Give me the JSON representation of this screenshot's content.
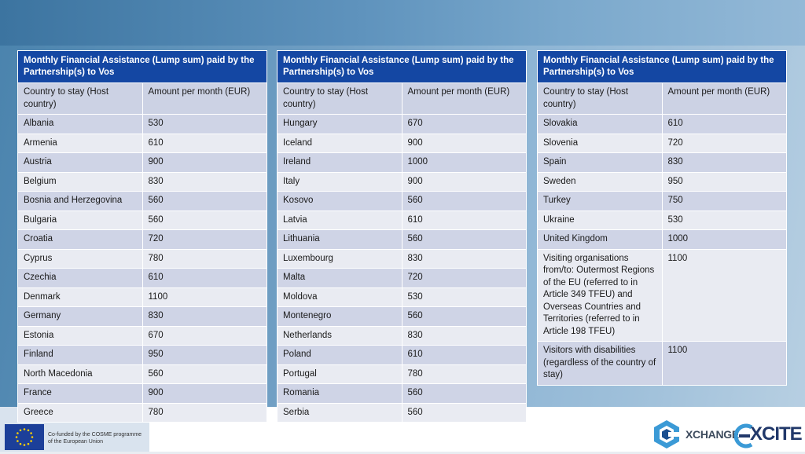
{
  "header": "Monthly Financial Assistance (Lump sum) paid by the Partnership(s) to Vos",
  "col1": "Country to stay (Host country)",
  "col2": "Amount per month (EUR)",
  "tables": [
    {
      "rows": [
        [
          "Albania",
          "530"
        ],
        [
          "Armenia",
          "610"
        ],
        [
          "Austria",
          "900"
        ],
        [
          "Belgium",
          "830"
        ],
        [
          "Bosnia and Herzegovina",
          "560"
        ],
        [
          "Bulgaria",
          "560"
        ],
        [
          "Croatia",
          "720"
        ],
        [
          "Cyprus",
          "780"
        ],
        [
          "Czechia",
          "610"
        ],
        [
          "Denmark",
          "1100"
        ],
        [
          "Germany",
          "830"
        ],
        [
          "Estonia",
          "670"
        ],
        [
          "Finland",
          "950"
        ],
        [
          "North Macedonia",
          "560"
        ],
        [
          "France",
          "900"
        ],
        [
          "Greece",
          "780"
        ]
      ]
    },
    {
      "rows": [
        [
          "Hungary",
          "670"
        ],
        [
          "Iceland",
          "900"
        ],
        [
          "Ireland",
          "1000"
        ],
        [
          "Italy",
          "900"
        ],
        [
          "Kosovo",
          "560"
        ],
        [
          "Latvia",
          "610"
        ],
        [
          "Lithuania",
          "560"
        ],
        [
          "Luxembourg",
          "830"
        ],
        [
          "Malta",
          "720"
        ],
        [
          "Moldova",
          "530"
        ],
        [
          "Montenegro",
          "560"
        ],
        [
          "Netherlands",
          "830"
        ],
        [
          "Poland",
          "610"
        ],
        [
          "Portugal",
          "780"
        ],
        [
          "Romania",
          "560"
        ],
        [
          "Serbia",
          "560"
        ]
      ]
    },
    {
      "rows": [
        [
          "Slovakia",
          "610"
        ],
        [
          "Slovenia",
          "720"
        ],
        [
          "Spain",
          "830"
        ],
        [
          "Sweden",
          "950"
        ],
        [
          "Turkey",
          "750"
        ],
        [
          "Ukraine",
          "530"
        ],
        [
          "United Kingdom",
          "1000"
        ],
        [
          "Visiting organisations from/to: Outermost Regions of the EU (referred to in Article 349 TFEU) and Overseas Countries and Territories (referred to in Article 198 TFEU)",
          "1100"
        ],
        [
          "Visitors with disabilities (regardless of the country of stay)",
          "1100"
        ]
      ]
    }
  ],
  "footer": {
    "cofund_line1": "Co-funded by the COSME programme",
    "cofund_line2": "of the European Union",
    "logo1_text": "XCHANGE",
    "logo2_text": "XCITE",
    "flag_icon": "eu-flag-icon"
  }
}
